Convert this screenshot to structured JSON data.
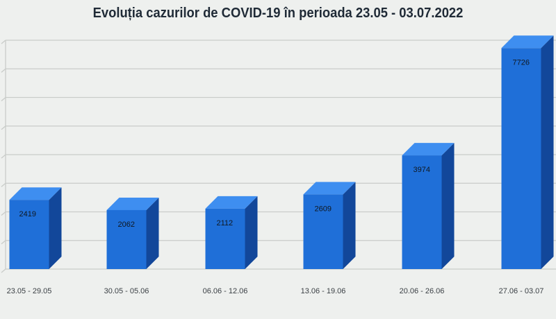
{
  "chart_data": {
    "type": "bar",
    "title": "Evoluția cazurilor de COVID-19 în perioada 23.05 - 03.07.2022",
    "categories": [
      "23.05 - 29.05",
      "30.05 - 05.06",
      "06.06 - 12.06",
      "13.06 - 19.06",
      "20.06 - 26.06",
      "27.06 - 03.07"
    ],
    "values": [
      2419,
      2062,
      2112,
      2609,
      3974,
      7726
    ],
    "ylim": [
      0,
      8000
    ],
    "grid": true,
    "legend": "none",
    "colors": {
      "bar_front": "#1f6fd8",
      "bar_top": "#3e8ef0",
      "bar_side": "#12479a",
      "grid": "#c9ccc9"
    }
  }
}
